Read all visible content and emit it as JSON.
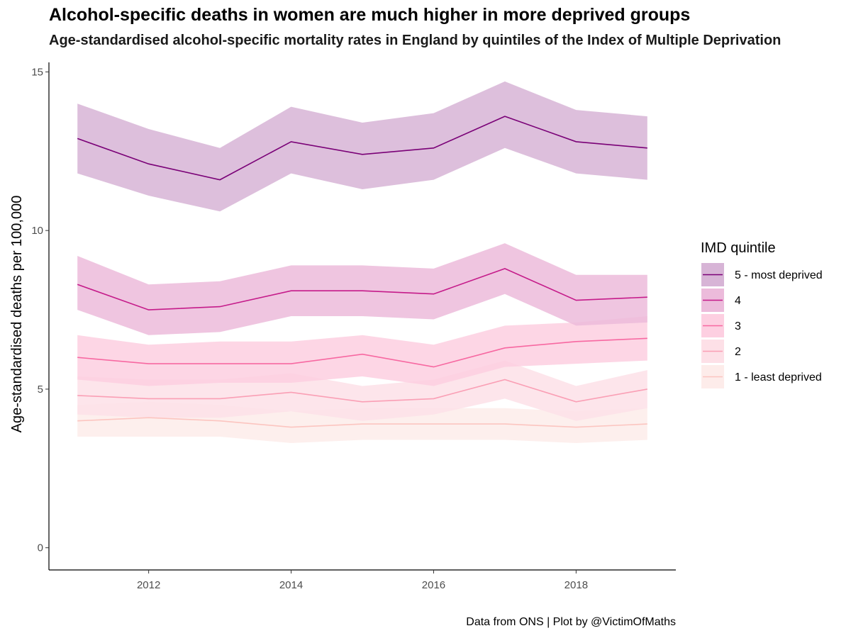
{
  "chart_data": {
    "type": "line",
    "title": "Alcohol-specific deaths in women are much higher in more deprived groups",
    "subtitle": "Age-standardised alcohol-specific mortality rates in England by quintiles of the Index of Multiple Deprivation",
    "caption": "Data from ONS | Plot by @VictimOfMaths",
    "xlabel": "",
    "ylabel": "Age-standardised deaths per 100,000",
    "x": [
      2011,
      2012,
      2013,
      2014,
      2015,
      2016,
      2017,
      2018,
      2019
    ],
    "xlim": [
      2010.6,
      2019.4
    ],
    "ylim": [
      -0.7,
      15.3
    ],
    "x_ticks": [
      2012,
      2014,
      2016,
      2018
    ],
    "y_ticks": [
      0,
      5,
      10,
      15
    ],
    "grid": false,
    "legend": {
      "title": "IMD quintile",
      "position": "right"
    },
    "series": [
      {
        "name": "5 - most deprived",
        "line_color": "#7a0177",
        "ribbon_color": "#d7b4d6",
        "values": [
          12.9,
          12.1,
          11.6,
          12.8,
          12.4,
          12.6,
          13.6,
          12.8,
          12.6
        ],
        "lower": [
          11.8,
          11.1,
          10.6,
          11.8,
          11.3,
          11.6,
          12.6,
          11.8,
          11.6
        ],
        "upper": [
          14.0,
          13.2,
          12.6,
          13.9,
          13.4,
          13.7,
          14.7,
          13.8,
          13.6
        ]
      },
      {
        "name": "4",
        "line_color": "#c51b8a",
        "ribbon_color": "#ecbbdb",
        "values": [
          8.3,
          7.5,
          7.6,
          8.1,
          8.1,
          8.0,
          8.8,
          7.8,
          7.9
        ],
        "lower": [
          7.5,
          6.7,
          6.8,
          7.3,
          7.3,
          7.2,
          8.0,
          7.0,
          7.1
        ],
        "upper": [
          9.2,
          8.3,
          8.4,
          8.9,
          8.9,
          8.8,
          9.6,
          8.6,
          8.6
        ]
      },
      {
        "name": "3",
        "line_color": "#f768a1",
        "ribbon_color": "#fdcfe1",
        "values": [
          6.0,
          5.8,
          5.8,
          5.8,
          6.1,
          5.7,
          6.3,
          6.5,
          6.6
        ],
        "lower": [
          5.3,
          5.1,
          5.2,
          5.2,
          5.4,
          5.1,
          5.7,
          5.8,
          5.9
        ],
        "upper": [
          6.7,
          6.4,
          6.5,
          6.5,
          6.7,
          6.4,
          7.0,
          7.1,
          7.3
        ]
      },
      {
        "name": "2",
        "line_color": "#fa9fb5",
        "ribbon_color": "#fde0e7",
        "values": [
          4.8,
          4.7,
          4.7,
          4.9,
          4.6,
          4.7,
          5.3,
          4.6,
          5.0
        ],
        "lower": [
          4.2,
          4.1,
          4.1,
          4.3,
          4.0,
          4.2,
          4.7,
          4.0,
          4.4
        ],
        "upper": [
          5.4,
          5.3,
          5.3,
          5.5,
          5.1,
          5.3,
          5.9,
          5.1,
          5.6
        ]
      },
      {
        "name": "1 - least deprived",
        "line_color": "#fcc5c0",
        "ribbon_color": "#fdecea",
        "values": [
          4.0,
          4.1,
          4.0,
          3.8,
          3.9,
          3.9,
          3.9,
          3.8,
          3.9
        ],
        "lower": [
          3.5,
          3.5,
          3.5,
          3.3,
          3.4,
          3.4,
          3.4,
          3.3,
          3.4
        ],
        "upper": [
          4.5,
          4.6,
          4.5,
          4.3,
          4.4,
          4.4,
          4.4,
          4.3,
          4.4
        ]
      }
    ]
  }
}
